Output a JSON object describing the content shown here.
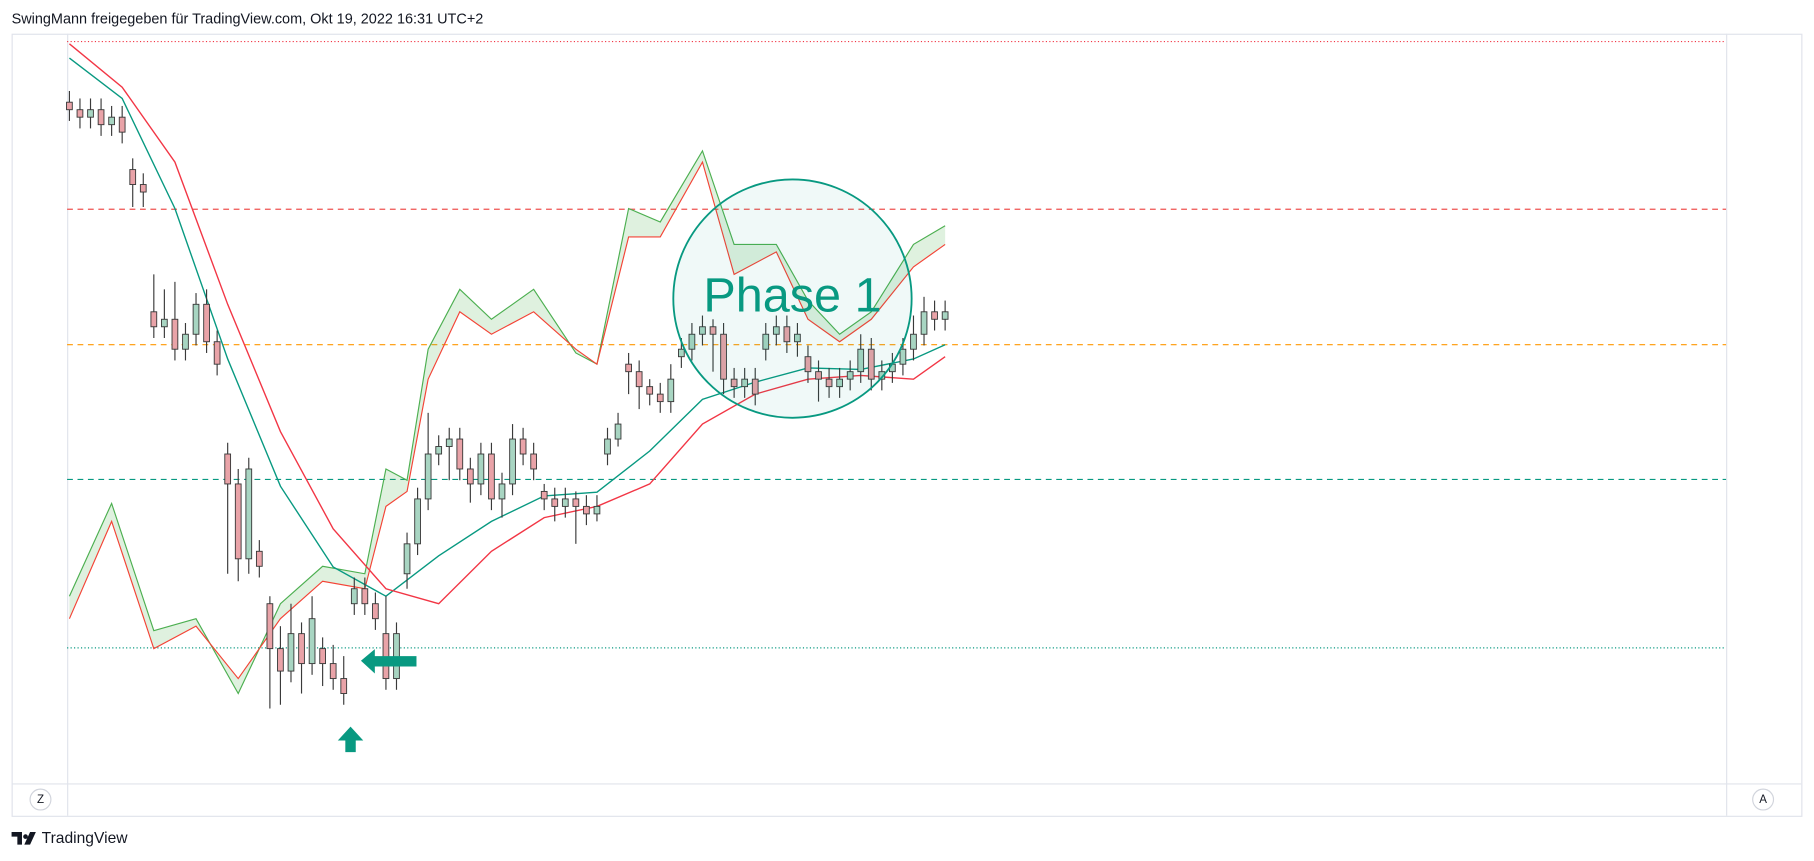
{
  "header": "SwingMann freigegeben für TradingView.com, Okt 19, 2022 16:31 UTC+2",
  "buttons": [
    "Z",
    "A"
  ],
  "brand": "TradingView",
  "chart_data": {
    "type": "candlestick",
    "annotation": "Phase 1",
    "ylim": [
      0,
      100
    ],
    "up_color": "#a8d5c2",
    "down_color": "#e9a3a8",
    "wick_color": "#3a3a3a",
    "ohlc": [
      [
        91,
        92.5,
        88.5,
        90
      ],
      [
        90,
        91.5,
        87.5,
        89
      ],
      [
        89,
        91.5,
        87.5,
        90
      ],
      [
        90,
        91.5,
        86.5,
        88
      ],
      [
        88,
        90.5,
        86.5,
        89
      ],
      [
        89,
        90.5,
        85.5,
        87
      ],
      [
        82,
        83.5,
        77,
        80
      ],
      [
        80,
        81.5,
        77,
        79
      ],
      [
        63,
        68,
        59.5,
        61
      ],
      [
        61,
        66,
        59.5,
        62
      ],
      [
        62,
        67,
        56.5,
        58
      ],
      [
        58,
        61.5,
        56.5,
        60
      ],
      [
        60,
        65.5,
        58.5,
        64
      ],
      [
        64,
        66,
        57.5,
        59
      ],
      [
        59,
        60.5,
        54.5,
        56
      ],
      [
        44,
        45.5,
        28,
        40
      ],
      [
        40,
        42,
        27,
        30
      ],
      [
        30,
        43.5,
        28,
        42
      ],
      [
        31,
        32.5,
        27.5,
        29
      ],
      [
        24,
        25,
        10,
        18
      ],
      [
        18,
        21,
        10.5,
        15
      ],
      [
        15,
        24,
        13.5,
        20
      ],
      [
        20,
        21.5,
        12,
        16
      ],
      [
        16,
        25,
        14.5,
        22
      ],
      [
        18,
        19.5,
        13,
        16
      ],
      [
        16,
        18.5,
        12.5,
        14
      ],
      [
        14,
        17,
        10.5,
        12
      ],
      [
        24,
        27.5,
        22.5,
        26
      ],
      [
        26,
        27.5,
        22.5,
        24
      ],
      [
        24,
        25.5,
        20.5,
        22
      ],
      [
        20,
        25,
        12.5,
        14
      ],
      [
        14,
        21.5,
        12.5,
        20
      ],
      [
        28,
        33.5,
        26,
        32
      ],
      [
        32,
        39.5,
        30.5,
        38
      ],
      [
        38,
        49.5,
        36.5,
        44
      ],
      [
        44,
        46.5,
        42.5,
        45
      ],
      [
        45,
        47.5,
        40.5,
        46
      ],
      [
        46,
        47.5,
        40.5,
        42
      ],
      [
        42,
        43.5,
        37.5,
        40
      ],
      [
        40,
        45.5,
        38.5,
        44
      ],
      [
        44,
        45.5,
        36.5,
        38
      ],
      [
        38,
        41.5,
        35.5,
        40
      ],
      [
        40,
        48,
        38.5,
        46
      ],
      [
        46,
        47.5,
        42.5,
        44
      ],
      [
        44,
        45.5,
        40.5,
        42
      ],
      [
        39,
        40,
        36.5,
        38
      ],
      [
        38,
        39.5,
        35,
        37
      ],
      [
        37,
        39.5,
        35.5,
        38
      ],
      [
        38,
        39,
        32,
        37
      ],
      [
        37,
        38.5,
        34.5,
        36
      ],
      [
        36,
        38.5,
        35,
        37
      ],
      [
        44,
        47.5,
        42.5,
        46
      ],
      [
        46,
        49.5,
        45,
        48
      ],
      [
        56,
        57.5,
        52,
        55
      ],
      [
        55,
        56.5,
        50,
        53
      ],
      [
        53,
        54,
        50.5,
        52
      ],
      [
        52,
        53.5,
        49.5,
        51
      ],
      [
        51,
        56,
        49.5,
        54
      ],
      [
        57,
        59.5,
        55.5,
        58
      ],
      [
        58,
        61.5,
        56.5,
        60
      ],
      [
        60,
        62.5,
        58.5,
        61
      ],
      [
        61,
        62,
        55,
        60
      ],
      [
        60,
        61.5,
        52,
        54
      ],
      [
        54,
        55.5,
        51.5,
        53
      ],
      [
        53,
        55.5,
        51.5,
        54
      ],
      [
        54,
        55.5,
        50.5,
        52
      ],
      [
        58,
        61.5,
        56.5,
        60
      ],
      [
        60,
        62.5,
        58.5,
        61
      ],
      [
        61,
        62.5,
        57.5,
        59
      ],
      [
        59,
        61.5,
        57,
        60
      ],
      [
        57,
        58.5,
        53.5,
        55
      ],
      [
        55,
        56.5,
        51,
        54
      ],
      [
        54,
        55.5,
        51.5,
        53
      ],
      [
        53,
        55.5,
        51.5,
        54
      ],
      [
        54,
        56.5,
        52.5,
        55
      ],
      [
        55,
        60,
        53.5,
        58
      ],
      [
        58,
        59.5,
        52.5,
        54
      ],
      [
        54,
        56.5,
        52.5,
        55
      ],
      [
        55,
        57.5,
        53.5,
        56
      ],
      [
        56,
        59.5,
        54.5,
        58
      ],
      [
        58,
        62.5,
        56.5,
        60
      ],
      [
        60,
        65,
        58.5,
        63
      ],
      [
        63,
        64.5,
        60.5,
        62
      ],
      [
        62,
        64.5,
        60.5,
        63
      ]
    ],
    "lines": [
      {
        "color": "#089981",
        "x": [
          0,
          5,
          10,
          15,
          20,
          25,
          30,
          35,
          40,
          45,
          50,
          55,
          60,
          65,
          70,
          75,
          80,
          83
        ],
        "values": [
          96.9,
          91.5,
          76.8,
          56.7,
          39.7,
          28.9,
          25.0,
          30.4,
          35.0,
          38.4,
          38.9,
          44.4,
          51.3,
          53.6,
          55.5,
          55.3,
          56.7,
          58.6
        ]
      },
      {
        "color": "#f23645",
        "x": [
          0,
          5,
          10,
          15,
          20,
          25,
          30,
          35,
          40,
          45,
          50,
          55,
          60,
          65,
          70,
          75,
          80,
          83
        ],
        "values": [
          98.8,
          93,
          83,
          64,
          47,
          34,
          26,
          24,
          31,
          35.5,
          37,
          40,
          48,
          52,
          54,
          54.5,
          54,
          57
        ]
      }
    ],
    "band": {
      "fill": "#4caf50",
      "upper": {
        "color": "#4caf50",
        "x": [
          0,
          4,
          8,
          12,
          16,
          20,
          24,
          28,
          30,
          32,
          34,
          37,
          40,
          44,
          48,
          50,
          53,
          56,
          60,
          63,
          67,
          70,
          73,
          76,
          80,
          83
        ],
        "values": [
          25,
          37.4,
          20.4,
          22,
          12,
          24,
          29,
          28,
          42,
          40.5,
          58,
          66,
          62,
          66,
          57.5,
          56,
          76.8,
          75,
          84.5,
          72,
          72,
          64.5,
          60,
          63,
          72,
          74.5
        ]
      },
      "lower": {
        "color": "#f44336",
        "x": [
          0,
          4,
          8,
          12,
          16,
          20,
          24,
          28,
          30,
          32,
          34,
          37,
          40,
          44,
          48,
          50,
          53,
          56,
          60,
          63,
          67,
          70,
          73,
          76,
          80,
          83
        ],
        "values": [
          22,
          35,
          18,
          21,
          14,
          22,
          27,
          26,
          37,
          39,
          54,
          63,
          60,
          63,
          58,
          56,
          73,
          73,
          83,
          68,
          71,
          62,
          59,
          62,
          69,
          72
        ]
      }
    },
    "levels": [
      {
        "value": 99.1,
        "color": "#f23645",
        "style": "dotted"
      },
      {
        "value": 76.7,
        "color": "#ef5350",
        "style": "dashed"
      },
      {
        "value": 58.6,
        "color": "#ff9800",
        "style": "dashed"
      },
      {
        "value": 40.6,
        "color": "#089981",
        "style": "dashed"
      },
      {
        "value": 18.1,
        "color": "#089981",
        "style": "dotted"
      }
    ]
  }
}
